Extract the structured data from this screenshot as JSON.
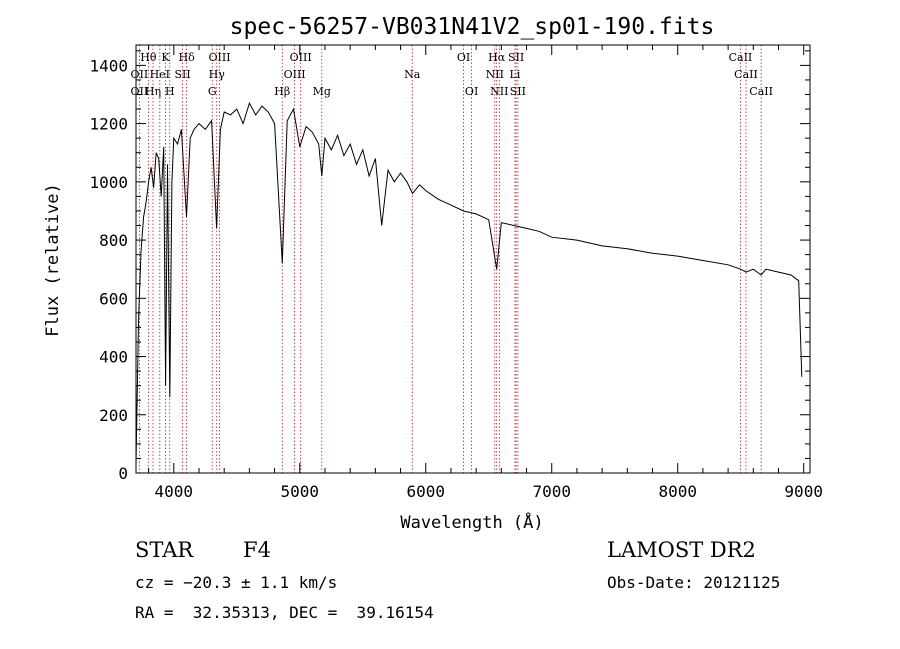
{
  "chart_data": {
    "type": "line",
    "title": "spec-56257-VB031N41V2_sp01-190.fits",
    "xlabel": "Wavelength (Å)",
    "ylabel": "Flux (relative)",
    "xlim": [
      3700,
      9050
    ],
    "ylim": [
      0,
      1470
    ],
    "x_ticks": [
      4000,
      5000,
      6000,
      7000,
      8000,
      9000
    ],
    "x_tick_labels": [
      "4000",
      "5000",
      "6000",
      "7000",
      "8000",
      "9000"
    ],
    "y_ticks": [
      0,
      200,
      400,
      600,
      800,
      1000,
      1200,
      1400
    ],
    "y_tick_labels": [
      "0",
      "200",
      "400",
      "600",
      "800",
      "1000",
      "1200",
      "1400"
    ],
    "grid": false,
    "series": [
      {
        "x": [
          3700,
          3720,
          3740,
          3760,
          3780,
          3800,
          3820,
          3840,
          3860,
          3880,
          3900,
          3920,
          3935,
          3950,
          3968,
          3985,
          4000,
          4030,
          4060,
          4101,
          4130,
          4160,
          4200,
          4250,
          4300,
          4340,
          4370,
          4400,
          4450,
          4500,
          4550,
          4600,
          4650,
          4700,
          4750,
          4800,
          4861,
          4900,
          4950,
          5000,
          5050,
          5100,
          5150,
          5175,
          5200,
          5250,
          5300,
          5350,
          5400,
          5450,
          5500,
          5550,
          5600,
          5650,
          5700,
          5750,
          5800,
          5850,
          5895,
          5950,
          6000,
          6100,
          6200,
          6300,
          6400,
          6500,
          6563,
          6600,
          6700,
          6800,
          6900,
          7000,
          7200,
          7400,
          7600,
          7800,
          8000,
          8200,
          8400,
          8500,
          8542,
          8600,
          8662,
          8700,
          8800,
          8900,
          8960,
          8985
        ],
        "y": [
          30,
          520,
          760,
          880,
          930,
          1000,
          1050,
          980,
          1100,
          1080,
          950,
          1120,
          300,
          1060,
          260,
          1000,
          1150,
          1130,
          1180,
          880,
          1150,
          1180,
          1200,
          1180,
          1210,
          840,
          1180,
          1240,
          1230,
          1250,
          1200,
          1270,
          1230,
          1260,
          1240,
          1200,
          720,
          1210,
          1250,
          1120,
          1190,
          1170,
          1130,
          1020,
          1150,
          1110,
          1160,
          1090,
          1130,
          1060,
          1110,
          1020,
          1080,
          850,
          1040,
          1000,
          1030,
          1000,
          960,
          990,
          970,
          940,
          920,
          900,
          890,
          870,
          700,
          860,
          850,
          840,
          830,
          810,
          800,
          780,
          770,
          755,
          745,
          730,
          715,
          700,
          690,
          700,
          680,
          700,
          690,
          680,
          660,
          330
        ]
      }
    ],
    "line_labels": [
      {
        "text": "Hθ",
        "wavelength": 3798
      },
      {
        "text": "K",
        "wavelength": 3934
      },
      {
        "text": "Hδ",
        "wavelength": 4102
      },
      {
        "text": "OIII",
        "wavelength": 4363
      },
      {
        "text": "OIII",
        "wavelength": 5007
      },
      {
        "text": "OI",
        "wavelength": 6300
      },
      {
        "text": "Hα",
        "wavelength": 6563
      },
      {
        "text": "SII",
        "wavelength": 6717
      },
      {
        "text": "CaII",
        "wavelength": 8498
      },
      {
        "text": "OII",
        "wavelength": 3727
      },
      {
        "text": "HeI",
        "wavelength": 3889
      },
      {
        "text": "SII",
        "wavelength": 4070
      },
      {
        "text": "Hγ",
        "wavelength": 4341
      },
      {
        "text": "OIII",
        "wavelength": 4959
      },
      {
        "text": "Na",
        "wavelength": 5893
      },
      {
        "text": "NII",
        "wavelength": 6548
      },
      {
        "text": "Li",
        "wavelength": 6708
      },
      {
        "text": "CaII",
        "wavelength": 8542
      },
      {
        "text": "OII",
        "wavelength": 3727
      },
      {
        "text": "Hη",
        "wavelength": 3835
      },
      {
        "text": "H",
        "wavelength": 3968
      },
      {
        "text": "G",
        "wavelength": 4305
      },
      {
        "text": "Hβ",
        "wavelength": 4861
      },
      {
        "text": "Mg",
        "wavelength": 5175
      },
      {
        "text": "OI",
        "wavelength": 6364
      },
      {
        "text": "NII",
        "wavelength": 6584
      },
      {
        "text": "SII",
        "wavelength": 6731
      },
      {
        "text": "CaII",
        "wavelength": 8662
      }
    ],
    "line_markers": [
      3727,
      3798,
      3835,
      3889,
      3934,
      3968,
      4070,
      4102,
      4305,
      4341,
      4363,
      4861,
      4959,
      5007,
      5175,
      5893,
      6300,
      6364,
      6548,
      6563,
      6584,
      6708,
      6717,
      6731,
      8498,
      8542,
      8662
    ]
  },
  "footer": {
    "object_class": "STAR",
    "subclass": "F4",
    "survey": "LAMOST DR2",
    "cz": "cz = −20.3 ± 1.1 km/s",
    "obs_date": "Obs-Date: 20121125",
    "coords": "RA =  32.35313, DEC =  39.16154"
  }
}
